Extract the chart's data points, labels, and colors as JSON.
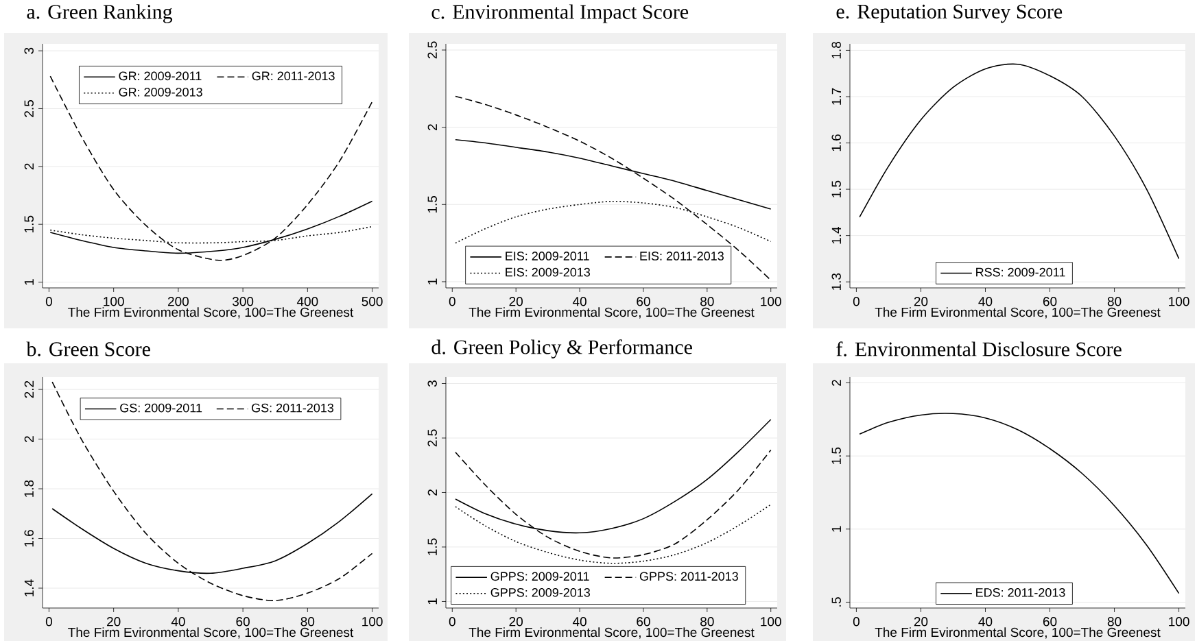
{
  "chart_data": [
    {
      "type": "line",
      "title": "a. Green Ranking",
      "xlabel": "The Firm Evironmental Score, 100=The Greenest",
      "x": [
        2,
        50,
        100,
        150,
        200,
        260,
        300,
        350,
        400,
        450,
        500
      ],
      "xlim": [
        -10,
        510
      ],
      "xticks": [
        0,
        100,
        200,
        300,
        400,
        500
      ],
      "ylim": [
        0.95,
        3.06
      ],
      "yticks": [
        1,
        1.5,
        2,
        2.5,
        3
      ],
      "grid": "y",
      "legend": "top",
      "series": [
        {
          "name": "GR: 2009-2011",
          "color": "#000000",
          "line_style": "solid",
          "values": [
            1.43,
            1.36,
            1.3,
            1.27,
            1.25,
            1.27,
            1.3,
            1.37,
            1.46,
            1.57,
            1.7
          ]
        },
        {
          "name": "GR: 2011-2013",
          "color": "#000000",
          "line_style": "dashed",
          "values": [
            2.78,
            2.26,
            1.8,
            1.49,
            1.28,
            1.19,
            1.23,
            1.38,
            1.67,
            2.05,
            2.56
          ]
        },
        {
          "name": "GR: 2009-2013",
          "color": "#000000",
          "line_style": "dotted",
          "values": [
            1.45,
            1.41,
            1.38,
            1.36,
            1.34,
            1.34,
            1.35,
            1.36,
            1.4,
            1.43,
            1.48
          ]
        }
      ]
    },
    {
      "type": "line",
      "title": "c. Environmental Impact Score",
      "xlabel": "The Firm Evironmental Score, 100=The Greenest",
      "x": [
        1,
        10,
        20,
        30,
        40,
        50,
        60,
        70,
        80,
        90,
        100
      ],
      "xlim": [
        -2,
        102
      ],
      "xticks": [
        0,
        20,
        40,
        60,
        80,
        100
      ],
      "ylim": [
        0.96,
        2.54
      ],
      "yticks": [
        1,
        1.5,
        2,
        2.5
      ],
      "grid": "y",
      "legend": "bottom",
      "series": [
        {
          "name": "EIS: 2009-2011",
          "color": "#000000",
          "line_style": "solid",
          "values": [
            1.92,
            1.9,
            1.87,
            1.84,
            1.8,
            1.75,
            1.7,
            1.65,
            1.59,
            1.53,
            1.47
          ]
        },
        {
          "name": "EIS: 2011-2013",
          "color": "#000000",
          "line_style": "dashed",
          "values": [
            2.2,
            2.15,
            2.08,
            2.0,
            1.91,
            1.8,
            1.67,
            1.53,
            1.37,
            1.2,
            1.01
          ]
        },
        {
          "name": "EIS: 2009-2013",
          "color": "#000000",
          "line_style": "dotted",
          "values": [
            1.25,
            1.34,
            1.42,
            1.47,
            1.5,
            1.52,
            1.51,
            1.48,
            1.42,
            1.35,
            1.26
          ]
        }
      ]
    },
    {
      "type": "line",
      "title": "e. Reputation Survey Score",
      "xlabel": "The Firm Evironmental Score, 100=The Greenest",
      "x": [
        1,
        10,
        20,
        30,
        40,
        50,
        60,
        70,
        80,
        90,
        100
      ],
      "xlim": [
        -2,
        102
      ],
      "xticks": [
        0,
        20,
        40,
        60,
        80,
        100
      ],
      "ylim": [
        1.287,
        1.814
      ],
      "yticks": [
        1.3,
        1.4,
        1.5,
        1.6,
        1.7,
        1.8
      ],
      "grid": "y",
      "legend": "bottom",
      "series": [
        {
          "name": "RSS: 2009-2011",
          "color": "#000000",
          "line_style": "solid",
          "values": [
            1.44,
            1.55,
            1.65,
            1.72,
            1.76,
            1.77,
            1.745,
            1.7,
            1.615,
            1.5,
            1.35
          ]
        }
      ]
    },
    {
      "type": "line",
      "title": "b. Green Score",
      "xlabel": "The Firm Evironmental Score, 100=The Greenest",
      "x": [
        1,
        10,
        20,
        30,
        40,
        50,
        60,
        70,
        80,
        90,
        100
      ],
      "xlim": [
        -2,
        102
      ],
      "xticks": [
        0,
        20,
        40,
        60,
        80,
        100
      ],
      "ylim": [
        1.32,
        2.25
      ],
      "yticks": [
        1.4,
        1.6,
        1.8,
        2,
        2.2
      ],
      "grid": "y",
      "legend": "top",
      "series": [
        {
          "name": "GS: 2009-2011",
          "color": "#000000",
          "line_style": "solid",
          "values": [
            1.72,
            1.64,
            1.56,
            1.5,
            1.47,
            1.46,
            1.48,
            1.51,
            1.58,
            1.67,
            1.78
          ]
        },
        {
          "name": "GS: 2011-2013",
          "color": "#000000",
          "line_style": "dashed",
          "values": [
            2.23,
            2.0,
            1.79,
            1.62,
            1.5,
            1.42,
            1.37,
            1.35,
            1.38,
            1.44,
            1.54
          ]
        }
      ]
    },
    {
      "type": "line",
      "title": "d. Green Policy & Performance",
      "xlabel": "The Firm Evironmental Score, 100=The Greenest",
      "x": [
        1,
        10,
        20,
        30,
        40,
        50,
        60,
        70,
        80,
        90,
        100
      ],
      "xlim": [
        -2,
        102
      ],
      "xticks": [
        0,
        20,
        40,
        60,
        80,
        100
      ],
      "ylim": [
        0.94,
        3.06
      ],
      "yticks": [
        1,
        1.5,
        2,
        2.5,
        3
      ],
      "grid": "y",
      "legend": "bottom",
      "series": [
        {
          "name": "GPPS: 2009-2011",
          "color": "#000000",
          "line_style": "solid",
          "values": [
            1.94,
            1.81,
            1.71,
            1.65,
            1.63,
            1.67,
            1.76,
            1.92,
            2.12,
            2.38,
            2.67
          ]
        },
        {
          "name": "GPPS: 2011-2013",
          "color": "#000000",
          "line_style": "dashed",
          "values": [
            2.37,
            2.08,
            1.8,
            1.59,
            1.46,
            1.4,
            1.43,
            1.53,
            1.75,
            2.03,
            2.39
          ]
        },
        {
          "name": "GPPS: 2009-2013",
          "color": "#000000",
          "line_style": "dotted",
          "values": [
            1.87,
            1.7,
            1.55,
            1.45,
            1.38,
            1.35,
            1.37,
            1.43,
            1.54,
            1.7,
            1.89
          ]
        }
      ]
    },
    {
      "type": "line",
      "title": "f. Environmental Disclosure Score",
      "xlabel": "The Firm Evironmental Score, 100=The Greenest",
      "x": [
        1,
        10,
        20,
        30,
        40,
        50,
        60,
        70,
        80,
        90,
        100
      ],
      "xlim": [
        -2,
        102
      ],
      "xticks": [
        0,
        20,
        40,
        60,
        80,
        100
      ],
      "ylim": [
        0.46,
        2.04
      ],
      "yticks": [
        {
          "value": 0.5,
          "label": ".5"
        },
        1,
        1.5,
        2
      ],
      "grid": "y",
      "legend": "bottom",
      "series": [
        {
          "name": "EDS: 2011-2013",
          "color": "#000000",
          "line_style": "solid",
          "values": [
            1.65,
            1.73,
            1.78,
            1.79,
            1.76,
            1.68,
            1.55,
            1.38,
            1.16,
            0.89,
            0.56
          ]
        }
      ]
    }
  ]
}
